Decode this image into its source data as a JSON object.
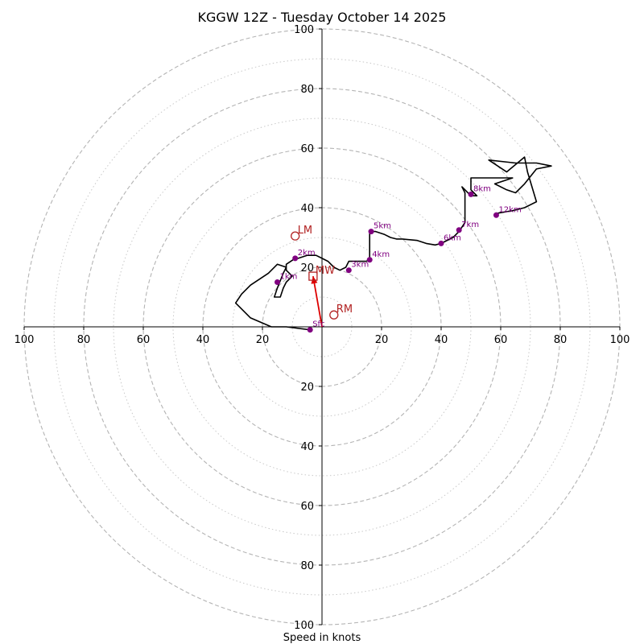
{
  "chart_data": {
    "type": "scatter",
    "title": "KGGW 12Z - Tuesday October 14 2025",
    "xlabel": "Speed in knots",
    "ylabel": "",
    "xlim": [
      -100,
      100
    ],
    "ylim": [
      -100,
      100
    ],
    "rings": {
      "major": [
        20,
        40,
        60,
        80,
        100
      ],
      "minor": [
        10,
        30,
        50,
        70,
        90
      ],
      "major_style": "dashed",
      "minor_style": "dotted"
    },
    "x_tick_labels": [
      "100",
      "80",
      "60",
      "40",
      "20",
      "20",
      "40",
      "60",
      "80",
      "100"
    ],
    "x_tick_values": [
      -100,
      -80,
      -60,
      -40,
      -20,
      20,
      40,
      60,
      80,
      100
    ],
    "y_tick_labels": [
      "100",
      "80",
      "60",
      "40",
      "20",
      "20",
      "40",
      "60",
      "80",
      "100"
    ],
    "y_tick_values": [
      100,
      80,
      60,
      40,
      20,
      -20,
      -40,
      -60,
      -80,
      -100
    ],
    "hodograph": {
      "color": "#000000",
      "points": [
        [
          -4,
          -1
        ],
        [
          -12,
          0
        ],
        [
          -17,
          0
        ],
        [
          -24,
          3
        ],
        [
          -29,
          8
        ],
        [
          -27,
          11
        ],
        [
          -24,
          14
        ],
        [
          -18,
          18
        ],
        [
          -15,
          21
        ],
        [
          -12,
          20
        ],
        [
          -13,
          18
        ],
        [
          -15,
          13
        ],
        [
          -16,
          10
        ],
        [
          -14,
          10
        ],
        [
          -13,
          13
        ],
        [
          -12,
          15
        ],
        [
          -10,
          17
        ],
        [
          -12,
          19
        ],
        [
          -12,
          21
        ],
        [
          -9,
          23
        ],
        [
          -8,
          23
        ],
        [
          -5,
          24
        ],
        [
          -2,
          24
        ],
        [
          0,
          23
        ],
        [
          2,
          22
        ],
        [
          4,
          20
        ],
        [
          6,
          19
        ],
        [
          8,
          20
        ],
        [
          9,
          22
        ],
        [
          11,
          22
        ],
        [
          14,
          22
        ],
        [
          15,
          22
        ],
        [
          16,
          23
        ],
        [
          16,
          29
        ],
        [
          16,
          32
        ],
        [
          18,
          32
        ],
        [
          21,
          31
        ],
        [
          23,
          30
        ],
        [
          25,
          29.5
        ],
        [
          27,
          29.5
        ],
        [
          32,
          29
        ],
        [
          35,
          28
        ],
        [
          38,
          27.5
        ],
        [
          40,
          28
        ],
        [
          44,
          30
        ],
        [
          46,
          32
        ],
        [
          48,
          35
        ],
        [
          48,
          40
        ],
        [
          48,
          45
        ],
        [
          47,
          47
        ],
        [
          50,
          44
        ],
        [
          52,
          44
        ],
        [
          50,
          46
        ],
        [
          50,
          50
        ],
        [
          58,
          50
        ],
        [
          64,
          50
        ],
        [
          58,
          48
        ],
        [
          62,
          46
        ],
        [
          65,
          45
        ],
        [
          68,
          48
        ],
        [
          72,
          53
        ],
        [
          77,
          54
        ],
        [
          72,
          55
        ],
        [
          65,
          55
        ],
        [
          56,
          56
        ],
        [
          62,
          52
        ],
        [
          68,
          57
        ],
        [
          69,
          52
        ],
        [
          72,
          42
        ],
        [
          68,
          40
        ],
        [
          64,
          39
        ],
        [
          58,
          38
        ]
      ]
    },
    "height_markers": {
      "color": "#800080",
      "points": [
        {
          "label": "Sfc",
          "x": -4,
          "y": -1
        },
        {
          "label": "1km",
          "x": -15,
          "y": 15
        },
        {
          "label": "2km",
          "x": -9,
          "y": 23
        },
        {
          "label": "3km",
          "x": 9,
          "y": 19
        },
        {
          "label": "4km",
          "x": 16,
          "y": 22.5
        },
        {
          "label": "5km",
          "x": 16.5,
          "y": 32
        },
        {
          "label": "6km",
          "x": 40,
          "y": 28
        },
        {
          "label": "7km",
          "x": 46,
          "y": 32.5
        },
        {
          "label": "8km",
          "x": 50,
          "y": 44.5
        },
        {
          "label": "12km",
          "x": 58.5,
          "y": 37.5
        }
      ]
    },
    "motion_markers": {
      "color": "#b22222",
      "points": [
        {
          "label": "LM",
          "x": -9,
          "y": 30.5,
          "symbol": "circle"
        },
        {
          "label": "MW",
          "x": -3,
          "y": 17,
          "symbol": "square"
        },
        {
          "label": "RM",
          "x": 4,
          "y": 4,
          "symbol": "circle"
        }
      ]
    },
    "vector": {
      "color": "#dd0000",
      "from": [
        0,
        0
      ],
      "to": [
        -3,
        17
      ]
    },
    "grid": true
  }
}
